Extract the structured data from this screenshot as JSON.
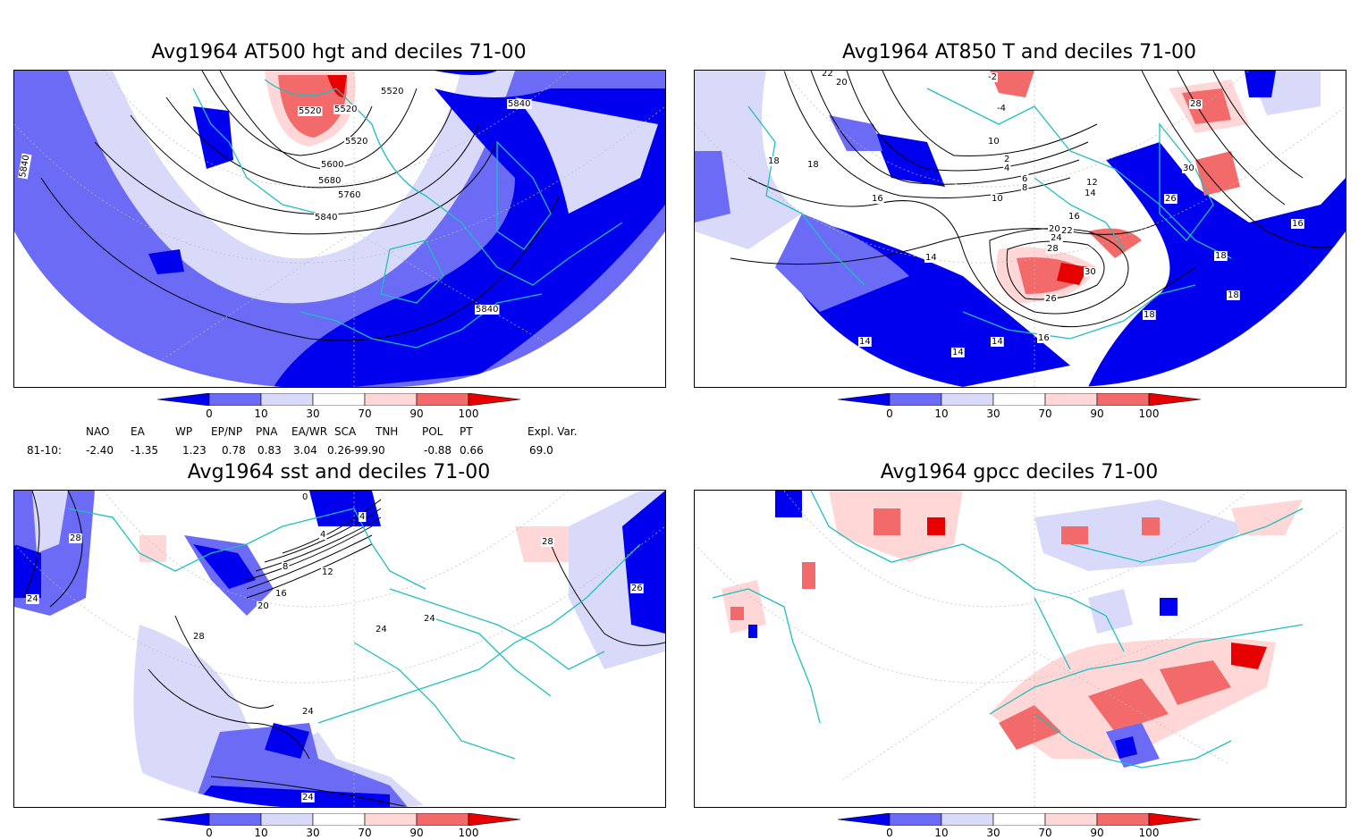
{
  "panels": [
    {
      "title": "Avg1964 AT500 hgt and deciles 71-00",
      "contour_labels": [
        "5520",
        "5520",
        "5520",
        "5520",
        "5600",
        "5680",
        "5760",
        "5840",
        "5840",
        "5840",
        "5840"
      ]
    },
    {
      "title": "Avg1964 AT850 T and deciles 71-00",
      "contour_labels": [
        "22",
        "20",
        "-2",
        "-4",
        "2",
        "4",
        "6",
        "8",
        "10",
        "10",
        "12",
        "14",
        "16",
        "16",
        "16",
        "18",
        "18",
        "20",
        "22",
        "24",
        "26",
        "26",
        "28",
        "28",
        "30",
        "30",
        "14",
        "14",
        "14",
        "14",
        "16",
        "18",
        "18",
        "18"
      ]
    },
    {
      "title": "Avg1964 sst and deciles 71-00",
      "contour_labels": [
        "28",
        "24",
        "0",
        "4",
        "4",
        "8",
        "12",
        "16",
        "20",
        "24",
        "24",
        "28",
        "24",
        "28",
        "24",
        "26"
      ]
    },
    {
      "title": "Avg1964 gpcc deciles 71-00",
      "contour_labels": []
    }
  ],
  "colorbar": {
    "ticks": [
      "0",
      "10",
      "30",
      "70",
      "90",
      "100"
    ],
    "colors": [
      "#0000ee",
      "#6b6bf5",
      "#d9d9fa",
      "#ffffff",
      "#ffd7d7",
      "#f26a6a",
      "#e60000"
    ]
  },
  "indices": {
    "headers": [
      "NAO",
      "EA",
      "WP",
      "EP/NP",
      "PNA",
      "EA/WR",
      "SCA",
      "TNH",
      "POL",
      "PT",
      "Expl. Var."
    ],
    "row_label": "81-10:",
    "values": [
      "-2.40",
      "-1.35",
      "1.23",
      "0.78",
      "0.83",
      "3.04",
      "0.26",
      "-99.90",
      "-0.88",
      "0.66",
      "69.0"
    ]
  }
}
